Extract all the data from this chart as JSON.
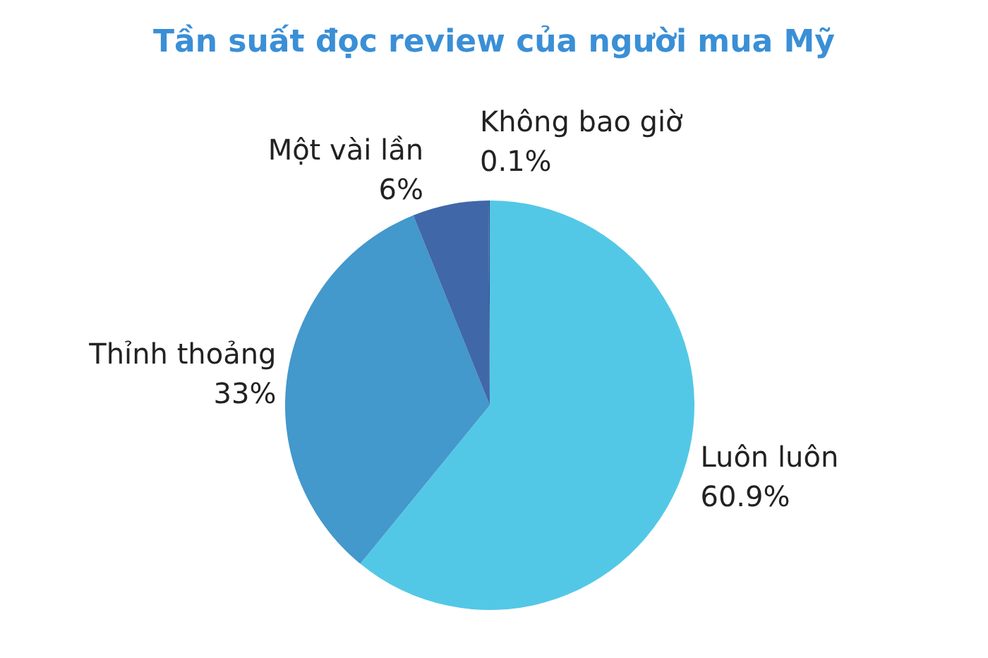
{
  "chart_data": {
    "type": "pie",
    "title": "Tần suất đọc review của người mua Mỹ",
    "categories": [
      "Luôn luôn",
      "Thỉnh thoảng",
      "Một vài lần",
      "Không bao giờ"
    ],
    "values": [
      60.9,
      33,
      6,
      0.1
    ],
    "colors": [
      "#53c8e6",
      "#4398cc",
      "#4068a8",
      "#2f4f8f"
    ],
    "value_labels": [
      "60.9%",
      "33%",
      "6%",
      "0.1%"
    ],
    "legend": false
  }
}
